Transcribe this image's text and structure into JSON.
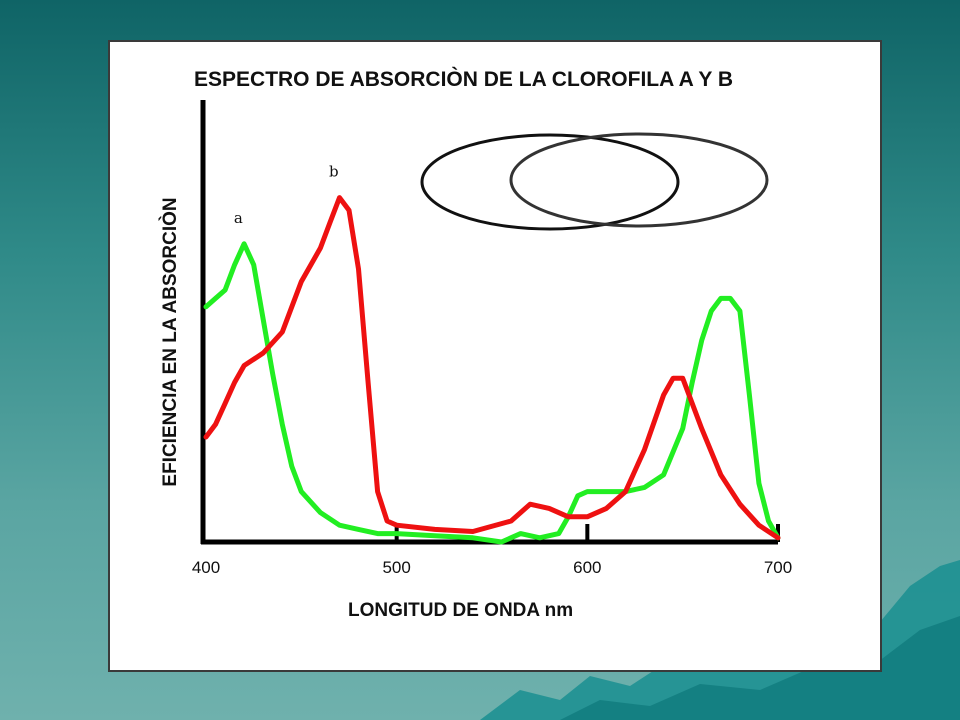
{
  "colors": {
    "series_a": "#22ee22",
    "series_b": "#ee1111",
    "background_top": "#0f6466",
    "background_bottom": "#6fb1ad",
    "mountain": "#1a8f90"
  },
  "chart_data": {
    "type": "line",
    "title": "ESPECTRO DE ABSORCIÒN DE LA CLOROFILA  A  Y  B",
    "xlabel": "LONGITUD DE ONDA  nm",
    "ylabel": "EFICIENCIA EN LA ABSORCIÒN",
    "xlim": [
      400,
      700
    ],
    "ylim": [
      0,
      100
    ],
    "xticks": [
      400,
      500,
      600,
      700
    ],
    "xtick_labels": [
      "400",
      "500",
      "600",
      "700"
    ],
    "grid": false,
    "series": [
      {
        "name": "a",
        "color": "#22ee22",
        "x": [
          400,
          405,
          410,
          415,
          420,
          425,
          430,
          435,
          440,
          445,
          450,
          460,
          470,
          480,
          490,
          500,
          520,
          540,
          555,
          565,
          575,
          585,
          590,
          595,
          600,
          610,
          620,
          630,
          640,
          650,
          655,
          660,
          665,
          670,
          675,
          680,
          685,
          690,
          695,
          700
        ],
        "y": [
          56,
          58,
          60,
          66,
          71,
          66,
          53,
          40,
          28,
          18,
          12,
          7,
          4,
          3,
          2,
          2,
          1.5,
          1,
          0,
          2,
          1,
          2,
          6,
          11,
          12,
          12,
          12,
          13,
          16,
          27,
          38,
          48,
          55,
          58,
          58,
          55,
          35,
          14,
          5,
          1
        ]
      },
      {
        "name": "b",
        "color": "#ee1111",
        "x": [
          400,
          405,
          410,
          415,
          420,
          430,
          440,
          450,
          455,
          460,
          465,
          470,
          475,
          480,
          485,
          490,
          495,
          500,
          520,
          540,
          560,
          570,
          580,
          590,
          600,
          610,
          620,
          630,
          640,
          645,
          650,
          660,
          670,
          680,
          690,
          700
        ],
        "y": [
          25,
          28,
          33,
          38,
          42,
          45,
          50,
          62,
          66,
          70,
          76,
          82,
          79,
          65,
          38,
          12,
          5,
          4,
          3,
          2.5,
          5,
          9,
          8,
          6,
          6,
          8,
          12,
          22,
          35,
          39,
          39,
          27,
          16,
          9,
          4,
          1
        ]
      }
    ],
    "annotations": [
      {
        "text": "a",
        "x": 417,
        "y": 76
      },
      {
        "text": "b",
        "x": 467,
        "y": 87
      }
    ]
  }
}
